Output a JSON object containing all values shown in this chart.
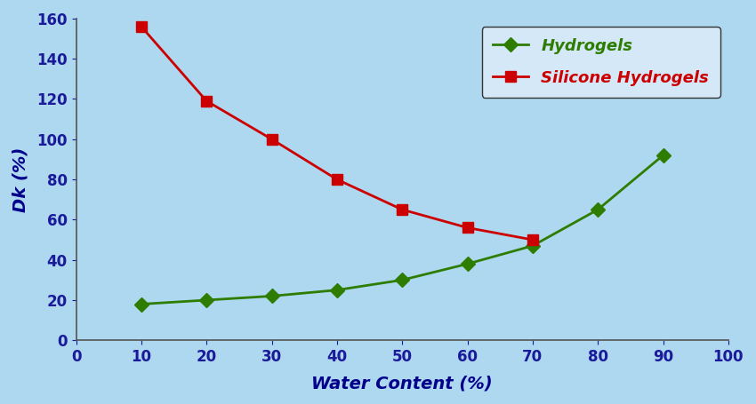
{
  "hydrogels_x": [
    10,
    20,
    30,
    40,
    50,
    60,
    70,
    80,
    90
  ],
  "hydrogels_y": [
    18,
    20,
    22,
    25,
    30,
    38,
    47,
    65,
    92
  ],
  "silicone_x": [
    10,
    20,
    30,
    40,
    50,
    60,
    70
  ],
  "silicone_y": [
    156,
    119,
    100,
    80,
    65,
    56,
    50
  ],
  "hydrogels_color": "#2e7d00",
  "silicone_color": "#cc0000",
  "background_color": "#add8f0",
  "legend_bg": "#d4e8f8",
  "xlabel": "Water Content (%)",
  "ylabel": "Dk (%)",
  "xlim": [
    0,
    100
  ],
  "ylim": [
    0,
    160
  ],
  "xticks": [
    0,
    10,
    20,
    30,
    40,
    50,
    60,
    70,
    80,
    90,
    100
  ],
  "yticks": [
    0,
    20,
    40,
    60,
    80,
    100,
    120,
    140,
    160
  ],
  "hydrogels_label": "Hydrogels",
  "silicone_label": "Silicone Hydrogels",
  "marker_hydrogels": "D",
  "marker_silicone": "s",
  "linewidth": 2.0,
  "markersize_hydrogels": 8,
  "markersize_silicone": 9,
  "xlabel_fontsize": 14,
  "ylabel_fontsize": 14,
  "tick_fontsize": 12,
  "legend_fontsize": 13,
  "tick_label_color": "#1a1a9a",
  "axis_label_color": "#00008b",
  "spine_color": "#555555"
}
